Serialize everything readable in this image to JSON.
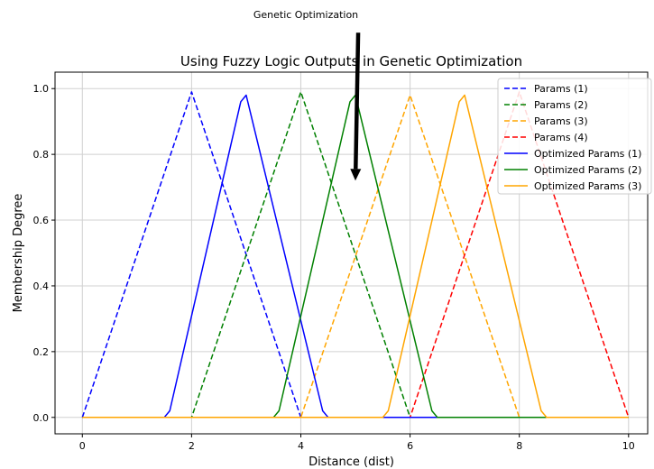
{
  "chart_data": {
    "type": "line",
    "title": "Using Fuzzy Logic Outputs in Genetic Optimization",
    "xlabel": "Distance (dist)",
    "ylabel": "Membership Degree",
    "xlim": [
      -0.5,
      10.35
    ],
    "ylim": [
      -0.05,
      1.05
    ],
    "xticks": [
      0,
      2,
      4,
      6,
      8,
      10
    ],
    "yticks": [
      0.0,
      0.2,
      0.4,
      0.6,
      0.8,
      1.0
    ],
    "xtick_labels": [
      "0",
      "2",
      "4",
      "6",
      "8",
      "10"
    ],
    "ytick_labels": [
      "0.0",
      "0.2",
      "0.4",
      "0.6",
      "0.8",
      "1.0"
    ],
    "grid": true,
    "legend_position": "upper right",
    "annotation": {
      "text": "Genetic Optimization",
      "arrow_from": [
        5.05,
        1.17
      ],
      "arrow_to": [
        5.0,
        0.72
      ]
    },
    "series": [
      {
        "name": "Params (1)",
        "color": "#0000ff",
        "style": "dashed",
        "x": [
          0,
          2,
          4,
          10
        ],
        "y": [
          0,
          0.99,
          0,
          0
        ]
      },
      {
        "name": "Params (2)",
        "color": "#008000",
        "style": "dashed",
        "x": [
          0,
          2,
          4,
          6,
          10
        ],
        "y": [
          0,
          0,
          0.99,
          0,
          0
        ]
      },
      {
        "name": "Params (3)",
        "color": "#ffa500",
        "style": "dashed",
        "x": [
          0,
          4,
          6,
          8,
          10
        ],
        "y": [
          0,
          0,
          0.98,
          0,
          0
        ]
      },
      {
        "name": "Params (4)",
        "color": "#ff0000",
        "style": "dashed",
        "x": [
          0,
          6,
          8,
          10
        ],
        "y": [
          0,
          0,
          0.99,
          0
        ]
      },
      {
        "name": "Optimized Params (1)",
        "color": "#0000ff",
        "style": "solid",
        "x": [
          0,
          1.5,
          1.6,
          2.9,
          3.0,
          4.4,
          4.5,
          10
        ],
        "y": [
          0,
          0,
          0.02,
          0.96,
          0.98,
          0.02,
          0,
          0
        ]
      },
      {
        "name": "Optimized Params (2)",
        "color": "#008000",
        "style": "solid",
        "x": [
          0,
          3.5,
          3.6,
          4.9,
          5.0,
          6.4,
          6.5,
          10
        ],
        "y": [
          0,
          0,
          0.02,
          0.96,
          0.98,
          0.02,
          0,
          0
        ]
      },
      {
        "name": "Optimized Params (3)",
        "color": "#ffa500",
        "style": "solid",
        "x": [
          0,
          5.5,
          5.6,
          6.9,
          7.0,
          8.4,
          8.5,
          10
        ],
        "y": [
          0,
          0,
          0.02,
          0.96,
          0.98,
          0.02,
          0,
          0
        ]
      }
    ]
  }
}
